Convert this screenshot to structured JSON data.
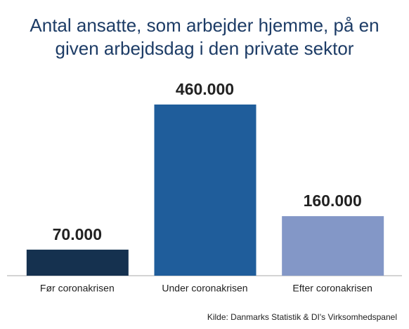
{
  "chart_data": {
    "type": "bar",
    "title": "Antal ansatte, som arbejder hjemme, på en given arbejdsdag i den private sektor",
    "categories": [
      "Før coronakrisen",
      "Under coronakrisen",
      "Efter coronakrisen"
    ],
    "values": [
      70000,
      460000,
      160000
    ],
    "value_labels": [
      "70.000",
      "460.000",
      "160.000"
    ],
    "colors": [
      "#15314f",
      "#1f5d9b",
      "#8397c7"
    ],
    "source": "Kilde: Danmarks Statistik & DI's Virksomhedspanel"
  }
}
